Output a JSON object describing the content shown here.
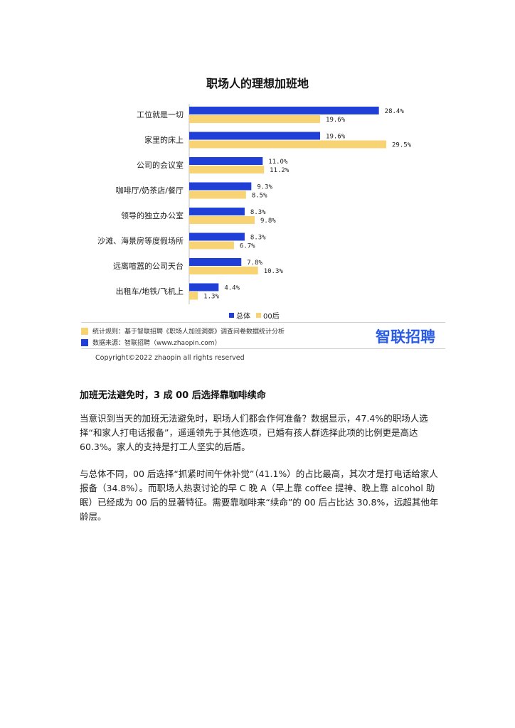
{
  "chart_data": {
    "type": "bar",
    "orientation": "horizontal",
    "title": "职场人的理想加班地",
    "categories": [
      "工位就是一切",
      "家里的床上",
      "公司的会议室",
      "咖啡厅/奶茶店/餐厅",
      "领导的独立办公室",
      "沙滩、海景房等度假场所",
      "远离喧嚣的公司天台",
      "出租车/地铁/飞机上"
    ],
    "series": [
      {
        "name": "总体",
        "color": "#1f3fd6",
        "values": [
          28.4,
          19.6,
          11.0,
          9.3,
          8.3,
          8.3,
          7.8,
          4.4
        ],
        "labels": [
          "28.4%",
          "19.6%",
          "11.0%",
          "9.3%",
          "8.3%",
          "8.3%",
          "7.8%",
          "4.4%"
        ]
      },
      {
        "name": "00后",
        "color": "#f8d373",
        "values": [
          19.6,
          29.5,
          11.2,
          8.5,
          9.8,
          6.7,
          10.3,
          1.3
        ],
        "labels": [
          "19.6%",
          "29.5%",
          "11.2%",
          "8.5%",
          "9.8%",
          "6.7%",
          "10.3%",
          "1.3%"
        ]
      }
    ],
    "xlim": [
      0,
      30
    ],
    "grid": false,
    "legend": "bottom-center"
  },
  "footer": {
    "rule_label": "统计规则：基于智联招聘《职场人加班洞察》调查问卷数据统计分析",
    "source_label": "数据来源：智联招聘（www.zhaopin.com）",
    "rule_color": "#f8d373",
    "source_color": "#1f3fd6",
    "logo_text": "智联招聘",
    "copyright": "Copyright©2022 zhaopin all rights reserved"
  },
  "article": {
    "heading": "加班无法避免时，3 成 00 后选择靠咖啡续命",
    "paragraph1": "当意识到当天的加班无法避免时，职场人们都会作何准备？数据显示，47.4%的职场人选择“和家人打电话报备”，遥遥领先于其他选项，已婚有孩人群选择此项的比例更是高达 60.3%。家人的支持是打工人坚实的后盾。",
    "paragraph2": "与总体不同，00 后选择“抓紧时间午休补觉”（41.1%）的占比最高，其次才是打电话给家人报备（34.8%）。而职场人热衷讨论的早 C 晚 A（早上靠 coffee 提神、晚上靠 alcohol 助眠）已经成为 00 后的显著特征。需要靠咖啡来“续命”的 00 后占比达 30.8%，远超其他年龄层。"
  }
}
